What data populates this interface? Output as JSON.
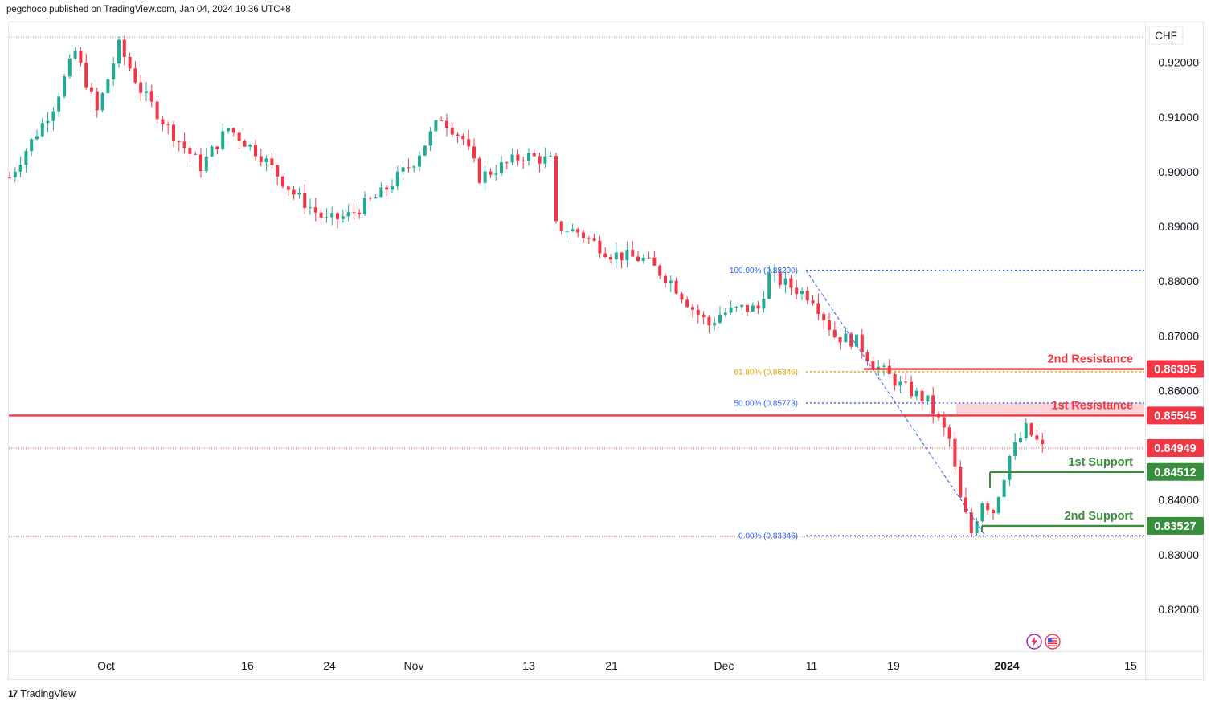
{
  "header": {
    "text": "pegchoco published on TradingView.com, Jan 04, 2024 10:36 UTC+8"
  },
  "footer": {
    "brand": "TradingView"
  },
  "chart_data": {
    "type": "candlestick",
    "currency": "CHF",
    "ylim": [
      0.8125,
      0.9273
    ],
    "y_ticks": [
      "0.92000",
      "0.91000",
      "0.90000",
      "0.89000",
      "0.88000",
      "0.87000",
      "0.86000",
      "0.84000",
      "0.83000",
      "0.82000"
    ],
    "x_ticks": [
      "Oct",
      "16",
      "24",
      "Nov",
      "13",
      "21",
      "Dec",
      "11",
      "19",
      "2024",
      "15"
    ],
    "x_tick_bold": "2024",
    "colors": {
      "up": "#22ab94",
      "down": "#f23645",
      "resistance": "#f23645",
      "support": "#388e3c",
      "fib_blue": "#2962ff",
      "fib_gold": "#e0a100"
    },
    "price_path": [
      [
        0,
        0.899
      ],
      [
        3,
        0.904
      ],
      [
        8,
        0.912
      ],
      [
        12,
        0.922
      ],
      [
        16,
        0.911
      ],
      [
        20,
        0.923
      ],
      [
        24,
        0.915
      ],
      [
        29,
        0.908
      ],
      [
        35,
        0.901
      ],
      [
        40,
        0.908
      ],
      [
        46,
        0.903
      ],
      [
        52,
        0.896
      ],
      [
        58,
        0.891
      ],
      [
        62,
        0.892
      ],
      [
        68,
        0.896
      ],
      [
        74,
        0.902
      ],
      [
        79,
        0.91
      ],
      [
        83,
        0.906
      ],
      [
        86,
        0.899
      ],
      [
        90,
        0.901
      ],
      [
        94,
        0.903
      ],
      [
        99,
        0.902
      ],
      [
        100,
        0.89
      ],
      [
        104,
        0.889
      ],
      [
        110,
        0.885
      ],
      [
        116,
        0.884
      ],
      [
        121,
        0.88
      ],
      [
        125,
        0.875
      ],
      [
        128,
        0.872
      ],
      [
        130,
        0.874
      ],
      [
        134,
        0.875
      ],
      [
        137,
        0.875
      ],
      [
        139,
        0.881
      ],
      [
        143,
        0.879
      ],
      [
        147,
        0.877
      ],
      [
        151,
        0.87
      ],
      [
        155,
        0.869
      ],
      [
        158,
        0.865
      ],
      [
        163,
        0.861
      ],
      [
        168,
        0.858
      ],
      [
        172,
        0.851
      ],
      [
        174,
        0.84
      ],
      [
        176,
        0.834
      ],
      [
        178,
        0.84
      ],
      [
        180,
        0.838
      ],
      [
        183,
        0.848
      ],
      [
        186,
        0.853
      ],
      [
        189,
        0.8495
      ]
    ],
    "fibonacci": [
      {
        "label": "100.00% (0.88200)",
        "value": 0.882
      },
      {
        "label": "61.80% (0.86346)",
        "value": 0.86346
      },
      {
        "label": "50.00% (0.85773)",
        "value": 0.85773
      },
      {
        "label": "0.00% (0.83346)",
        "value": 0.83346
      }
    ],
    "levels": [
      {
        "name": "2nd Resistance",
        "value": 0.86395,
        "price_label": "0.86395",
        "kind": "resistance"
      },
      {
        "name": "1st Resistance",
        "value": 0.85545,
        "price_label": "0.85545",
        "kind": "resistance"
      },
      {
        "name": "1st Support",
        "value": 0.84512,
        "price_label": "0.84512",
        "kind": "support"
      },
      {
        "name": "2nd Support",
        "value": 0.83527,
        "price_label": "0.83527",
        "kind": "support"
      }
    ],
    "current_price": {
      "value": 0.84949,
      "price_label": "0.84949"
    },
    "resistance_zone": [
      0.85545,
      0.85773
    ],
    "swing_high": 0.9245,
    "swing_low": 0.8334
  }
}
